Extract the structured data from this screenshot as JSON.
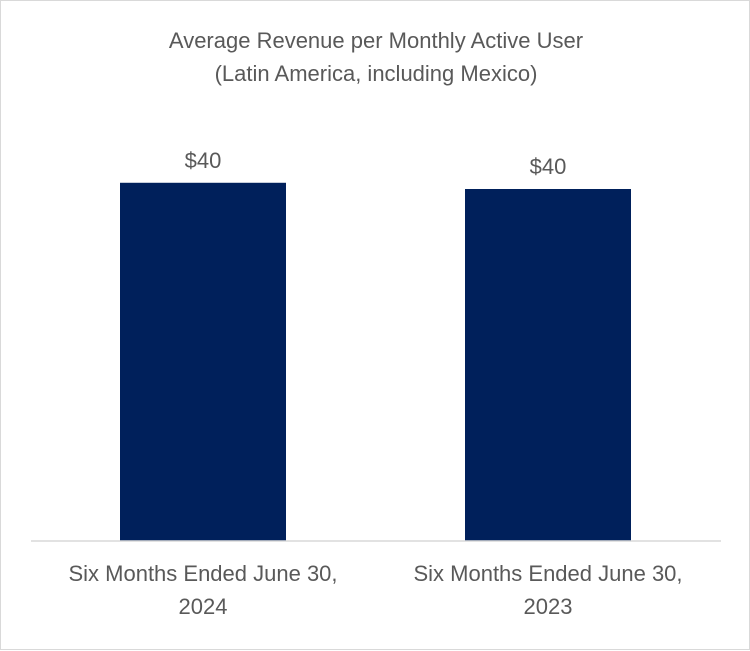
{
  "chart_data": {
    "type": "bar",
    "title": "Average Revenue per Monthly Active User",
    "subtitle": "(Latin America, including Mexico)",
    "categories": [
      [
        "Six Months Ended June 30,",
        "2024"
      ],
      [
        "Six Months Ended June 30,",
        "2023"
      ]
    ],
    "values": [
      40.3,
      39.6
    ],
    "data_labels": [
      "$40",
      "$40"
    ],
    "xlabel": "",
    "ylabel": "",
    "ylim": [
      0,
      45
    ],
    "grid": false,
    "legend": "none",
    "bar_color": "#00205b"
  }
}
